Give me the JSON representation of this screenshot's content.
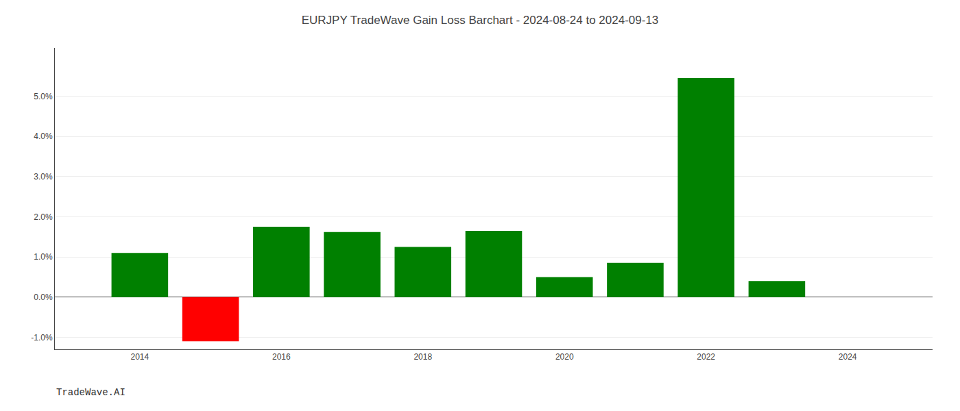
{
  "chart_data": {
    "type": "bar",
    "title": "EURJPY TradeWave Gain Loss Barchart - 2024-08-24 to 2024-09-13",
    "annotations": [
      "TradeWave.AI"
    ],
    "x": [
      2014,
      2015,
      2016,
      2017,
      2018,
      2019,
      2020,
      2021,
      2022,
      2023
    ],
    "values": [
      0.011,
      -0.011,
      0.0175,
      0.0162,
      0.0125,
      0.0165,
      0.005,
      0.0085,
      0.0545,
      0.004
    ],
    "colors": [
      "#008000",
      "#ff0000",
      "#008000",
      "#008000",
      "#008000",
      "#008000",
      "#008000",
      "#008000",
      "#008000",
      "#008000"
    ],
    "xlim": [
      2012.8,
      2025.2
    ],
    "xticks": [
      2014,
      2016,
      2018,
      2020,
      2022,
      2024
    ],
    "ylim": [
      -0.013,
      0.062
    ],
    "yticks": [
      {
        "value": -0.01,
        "label": "-1.0%"
      },
      {
        "value": 0.0,
        "label": "0.0%"
      },
      {
        "value": 0.01,
        "label": "1.0%"
      },
      {
        "value": 0.02,
        "label": "2.0%"
      },
      {
        "value": 0.03,
        "label": "3.0%"
      },
      {
        "value": 0.04,
        "label": "4.0%"
      },
      {
        "value": 0.05,
        "label": "5.0%"
      }
    ],
    "grid": true
  }
}
